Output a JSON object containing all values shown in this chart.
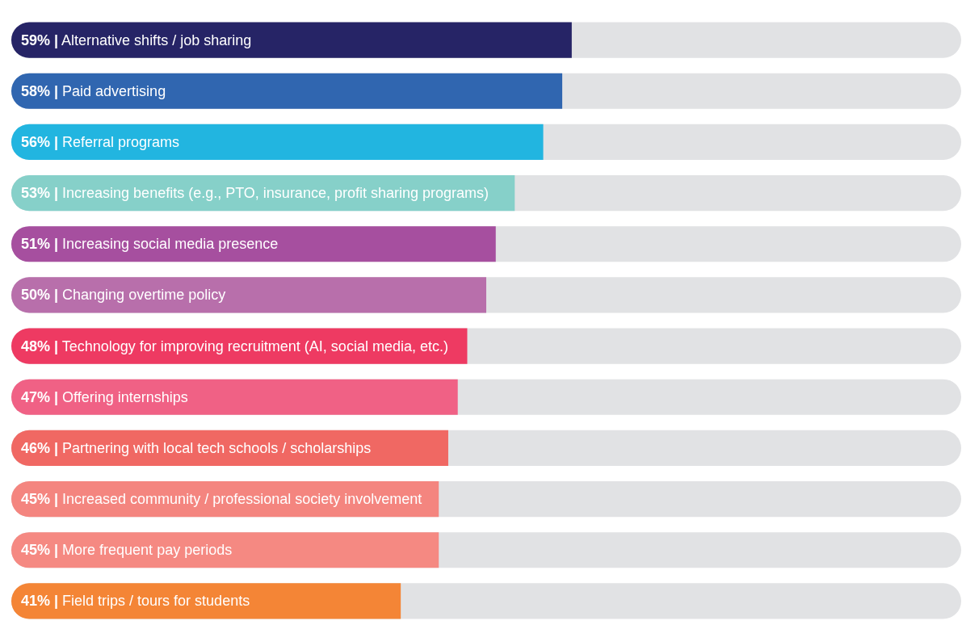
{
  "chart_data": {
    "type": "bar",
    "orientation": "horizontal",
    "categories": [
      "Alternative shifts / job sharing",
      "Paid advertising",
      "Referral programs",
      "Increasing benefits (e.g., PTO, insurance, profit sharing programs)",
      "Increasing social media presence",
      "Changing overtime policy",
      "Technology for improving recruitment (AI, social media, etc.)",
      "Offering internships",
      "Partnering with local tech schools / scholarships",
      "Increased community / professional society involvement",
      "More frequent pay periods",
      "Field trips / tours for students"
    ],
    "values": [
      59,
      58,
      56,
      53,
      51,
      50,
      48,
      47,
      46,
      45,
      45,
      41
    ],
    "value_labels": [
      "59% |",
      "58% |",
      "56% |",
      "53% |",
      "51% |",
      "50% |",
      "48% |",
      "47% |",
      "46% |",
      "45% |",
      "45% |",
      "41% |"
    ],
    "colors": [
      "#262466",
      "#3066b0",
      "#22b5e0",
      "#86d0c9",
      "#a64f9f",
      "#b86fab",
      "#ee3a62",
      "#f06185",
      "#f06863",
      "#f4857f",
      "#f58982",
      "#f48536"
    ],
    "xlim": [
      0,
      100
    ]
  }
}
